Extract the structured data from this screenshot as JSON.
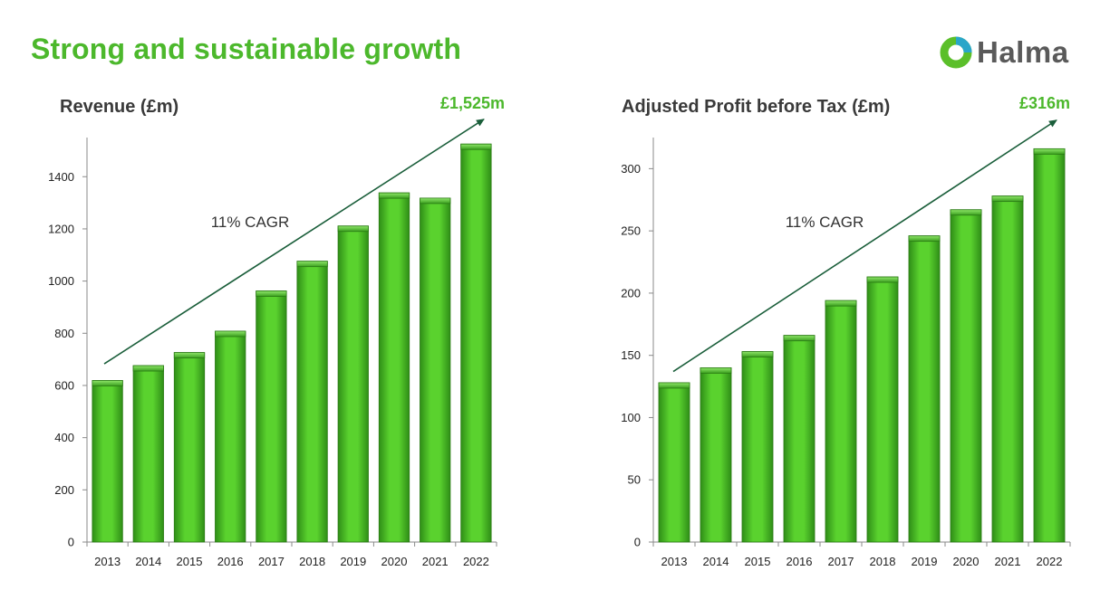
{
  "slide": {
    "title": "Strong and sustainable growth"
  },
  "logo": {
    "text": "Halma",
    "icon": "halma-ring-logo",
    "colors": {
      "green": "#5bbf2a",
      "blue": "#2aa6c9"
    }
  },
  "colors": {
    "accent": "#4cb82c",
    "bar_light": "#5ad22e",
    "bar_dark": "#2f8e17",
    "arrow": "#1a5e3a"
  },
  "chart_data": [
    {
      "type": "bar",
      "title": "Revenue (£m)",
      "end_label": "£1,525m",
      "annotation": "11% CAGR",
      "categories": [
        "2013",
        "2014",
        "2015",
        "2016",
        "2017",
        "2018",
        "2019",
        "2020",
        "2021",
        "2022"
      ],
      "values": [
        619,
        676,
        726,
        808,
        962,
        1076,
        1211,
        1338,
        1318,
        1525
      ],
      "ylim": [
        0,
        1550
      ],
      "yticks": [
        0,
        200,
        400,
        600,
        800,
        1000,
        1200,
        1400
      ],
      "trend": {
        "from": 683,
        "to": 1620
      }
    },
    {
      "type": "bar",
      "title": "Adjusted Profit before Tax (£m)",
      "end_label": "£316m",
      "annotation": "11% CAGR",
      "categories": [
        "2013",
        "2014",
        "2015",
        "2016",
        "2017",
        "2018",
        "2019",
        "2020",
        "2021",
        "2022"
      ],
      "values": [
        128,
        140,
        153,
        166,
        194,
        213,
        246,
        267,
        278,
        316
      ],
      "ylim": [
        0,
        325
      ],
      "yticks": [
        0,
        50,
        100,
        150,
        200,
        250,
        300
      ],
      "trend": {
        "from": 137,
        "to": 339
      }
    }
  ]
}
